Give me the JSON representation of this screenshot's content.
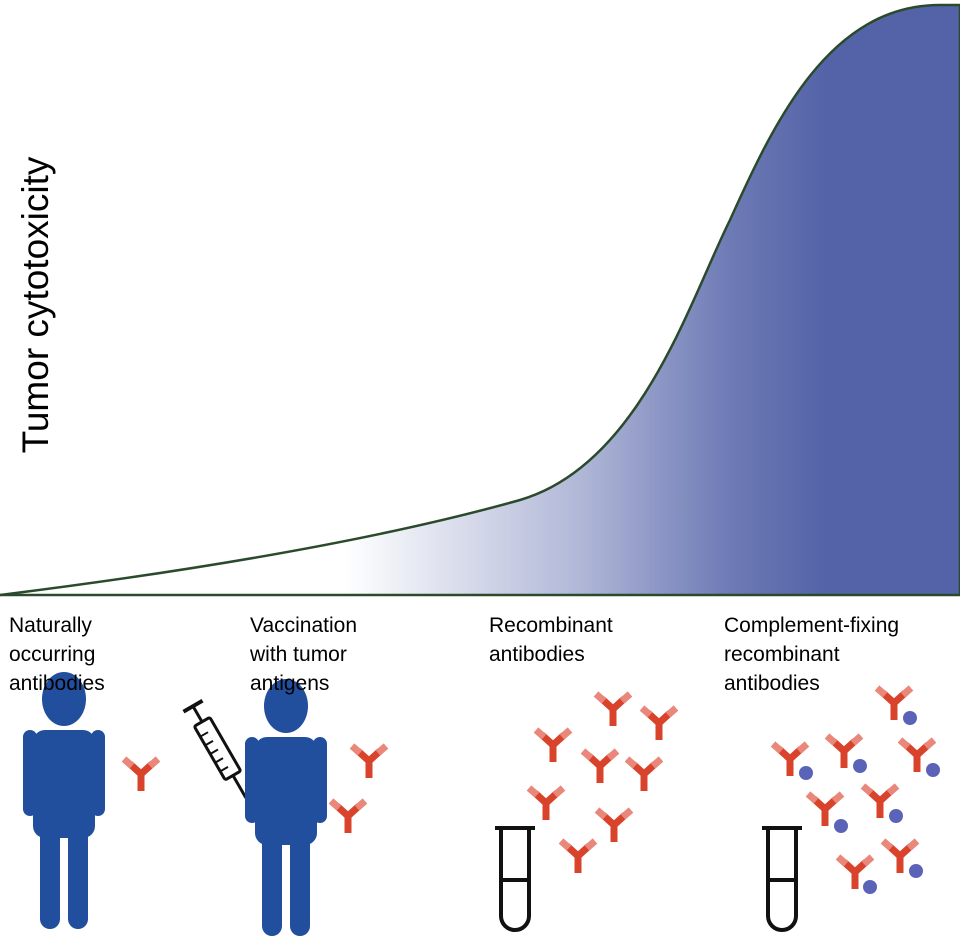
{
  "axis": {
    "ylabel": "Tumor cytotoxicity"
  },
  "categories": [
    {
      "id": "natural",
      "lines": [
        "Naturally",
        "occurring",
        "antibodies"
      ]
    },
    {
      "id": "vaccination",
      "lines": [
        "Vaccination",
        "with tumor",
        "antigens"
      ]
    },
    {
      "id": "recombinant",
      "lines": [
        "Recombinant",
        "antibodies"
      ]
    },
    {
      "id": "complement",
      "lines": [
        "Complement-fixing",
        "recombinant",
        "antibodies"
      ]
    }
  ],
  "colors": {
    "curve_fill": "#5463a8",
    "curve_stroke": "#2b4a2b",
    "person": "#224e9e",
    "antibody": "#d9432b",
    "antibody_light": "#e8877a",
    "complement": "#5a63b8",
    "tube": "#111111"
  },
  "icons": [
    "person-icon",
    "syringe-icon",
    "antibody-icon",
    "test-tube-icon",
    "complement-dot-icon"
  ]
}
